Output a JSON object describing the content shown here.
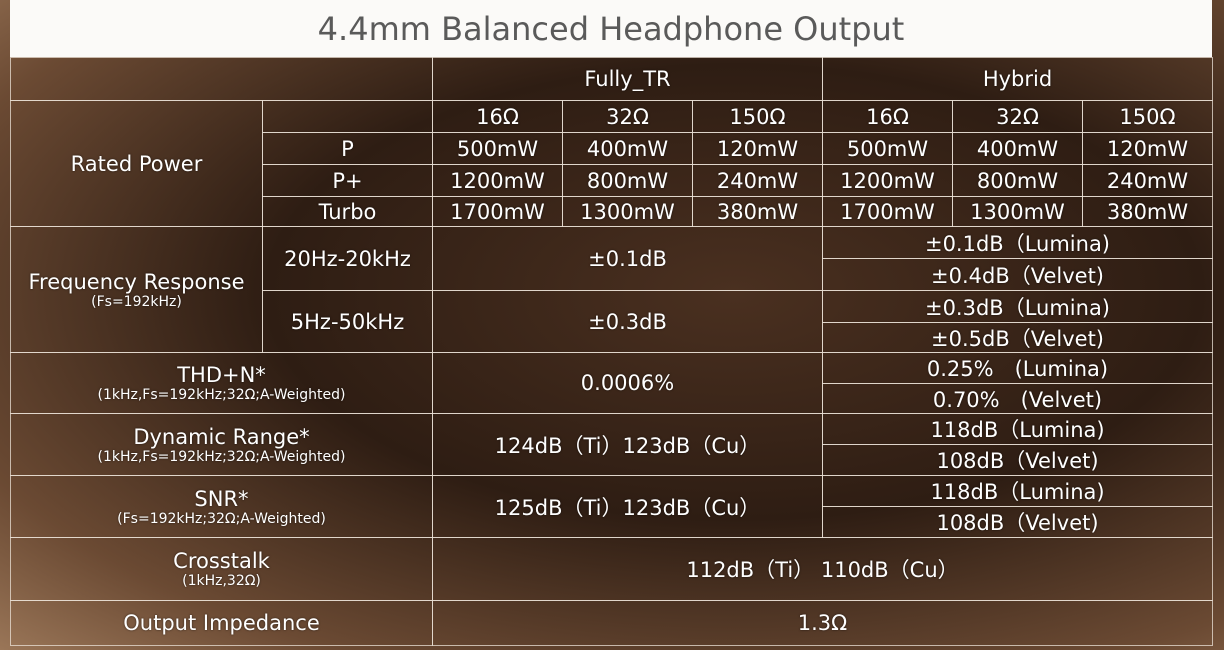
{
  "title": "4.4mm Balanced Headphone Output",
  "table": {
    "groups": [
      "Fully_TR",
      "Hybrid"
    ],
    "impedances": [
      "16Ω",
      "32Ω",
      "150Ω",
      "16Ω",
      "32Ω",
      "150Ω"
    ],
    "rated_power": {
      "label": "Rated Power",
      "modes": [
        {
          "name": "P",
          "values": [
            "500mW",
            "400mW",
            "120mW",
            "500mW",
            "400mW",
            "120mW"
          ]
        },
        {
          "name": "P+",
          "values": [
            "1200mW",
            "800mW",
            "240mW",
            "1200mW",
            "800mW",
            "240mW"
          ]
        },
        {
          "name": "Turbo",
          "values": [
            "1700mW",
            "1300mW",
            "380mW",
            "1700mW",
            "1300mW",
            "380mW"
          ]
        }
      ]
    },
    "frequency_response": {
      "label": "Frequency Response",
      "note": "(Fs=192kHz)",
      "ranges": [
        {
          "name": "20Hz-20kHz",
          "fully_tr": "±0.1dB",
          "hybrid": [
            "±0.1dB（Lumina)",
            "±0.4dB（Velvet)"
          ]
        },
        {
          "name": "5Hz-50kHz",
          "fully_tr": "±0.3dB",
          "hybrid": [
            "±0.3dB（Lumina)",
            "±0.5dB（Velvet)"
          ]
        }
      ]
    },
    "specs": [
      {
        "label": "THD+N*",
        "note": "(1kHz,Fs=192kHz;32Ω;A-Weighted)",
        "fully_tr": "0.0006%",
        "hybrid": [
          "0.25%　(Lumina)",
          "0.70%　(Velvet)"
        ]
      },
      {
        "label": "Dynamic Range*",
        "note": "(1kHz,Fs=192kHz;32Ω;A-Weighted)",
        "fully_tr": "124dB（Ti）123dB（Cu）",
        "hybrid": [
          "118dB（Lumina)",
          "108dB（Velvet)"
        ]
      },
      {
        "label": "SNR*",
        "note": "(Fs=192kHz;32Ω;A-Weighted)",
        "fully_tr": "125dB（Ti）123dB（Cu）",
        "hybrid": [
          "118dB（Lumina)",
          "108dB（Velvet)"
        ]
      }
    ],
    "crosstalk": {
      "label": "Crosstalk",
      "note": "(1kHz,32Ω)",
      "value": "112dB（Ti） 110dB（Cu）"
    },
    "output_impedance": {
      "label": "Output Impedance",
      "value": "1.3Ω"
    }
  }
}
